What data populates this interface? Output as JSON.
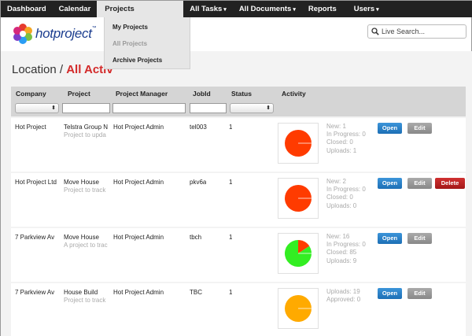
{
  "nav": {
    "items": [
      {
        "label": "Dashboard"
      },
      {
        "label": "Calendar"
      },
      {
        "label": "Projects"
      },
      {
        "label": "All Tasks"
      },
      {
        "label": "All Documents"
      },
      {
        "label": "Reports"
      },
      {
        "label": "Users"
      }
    ],
    "caret": "▾"
  },
  "projects_menu": {
    "items": [
      {
        "label": "My Projects"
      },
      {
        "label": "All Projects"
      },
      {
        "label": "Archive Projects"
      }
    ]
  },
  "logo": {
    "text": "hotproject",
    "tm": "™"
  },
  "search": {
    "placeholder": "Live Search..."
  },
  "page": {
    "title_prefix": "Location / ",
    "title_highlight": "All Activ"
  },
  "table": {
    "columns": {
      "company": "Company",
      "project": "Project",
      "manager": "Project Manager",
      "jobid": "JobId",
      "status": "Status",
      "activity": "Activity"
    },
    "select_arrow": "⬍",
    "rows": [
      {
        "company": "Hot Project",
        "project": "Telstra Group N",
        "desc": "Project to upda",
        "manager": "Hot Project Admin",
        "jobid": "tel003",
        "status": "1",
        "stats": [
          "New: 1",
          "In Progress: 0",
          "Closed: 0",
          "Uploads: 1"
        ],
        "open": "Open",
        "edit": "Edit",
        "delete": "",
        "pie": {
          "color": "#ff3b00",
          "slices": []
        }
      },
      {
        "company": "Hot Project Ltd",
        "project": "Move House",
        "desc": "Project to track",
        "manager": "Hot Project Admin",
        "jobid": "pkv6a",
        "status": "1",
        "stats": [
          "New: 2",
          "In Progress: 0",
          "Closed: 0",
          "Uploads: 0"
        ],
        "open": "Open",
        "edit": "Edit",
        "delete": "Delete",
        "pie": {
          "color": "#ff3b00",
          "slices": []
        }
      },
      {
        "company": "7 Parkview Av",
        "project": "Move House",
        "desc": "A project to trac",
        "manager": "Hot Project Admin",
        "jobid": "tbch",
        "status": "1",
        "stats": [
          "New: 16",
          "In Progress: 0",
          "Closed: 85",
          "Uploads: 9"
        ],
        "open": "Open",
        "edit": "Edit",
        "delete": "",
        "pie": {
          "color": "#33ee22",
          "slices": [
            {
              "value": 16,
              "color": "#ff3b00"
            },
            {
              "value": 85,
              "color": "#33ee22"
            }
          ]
        }
      },
      {
        "company": "7 Parkview Av",
        "project": "House Build",
        "desc": "Project to track",
        "manager": "Hot Project Admin",
        "jobid": "TBC",
        "status": "1",
        "stats": [
          "Uploads: 19",
          "Approved: 0"
        ],
        "open": "Open",
        "edit": "Edit",
        "delete": "",
        "pie": {
          "color": "#ffaa00",
          "slices": []
        }
      }
    ]
  }
}
